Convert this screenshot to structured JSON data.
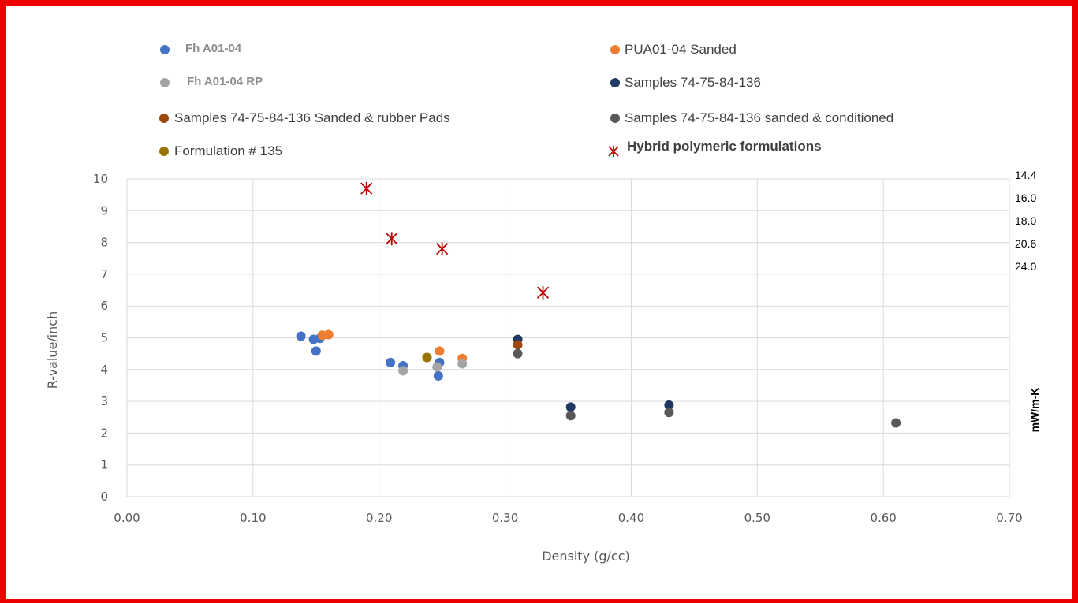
{
  "chart_data": {
    "type": "scatter",
    "title": "",
    "xlabel": "Density (g/cc)",
    "ylabel": "R-value/inch",
    "y2label": "mW/m-K",
    "xlim": [
      0,
      0.7
    ],
    "ylim": [
      0,
      10
    ],
    "x_ticks": [
      "0.00",
      "0.10",
      "0.20",
      "0.30",
      "0.40",
      "0.50",
      "0.60",
      "0.70"
    ],
    "y_ticks": [
      "0",
      "1",
      "2",
      "3",
      "4",
      "5",
      "6",
      "7",
      "8",
      "9",
      "10"
    ],
    "y2_ticks": [
      "14.4",
      "16.0",
      "18.0",
      "20.6",
      "24.0"
    ],
    "grid": true,
    "legend_position": "top",
    "series": [
      {
        "name": "Fh A01-04",
        "color": "#4472c4",
        "marker": "circle",
        "points": [
          [
            0.138,
            5.05
          ],
          [
            0.148,
            4.95
          ],
          [
            0.15,
            4.58
          ],
          [
            0.153,
            4.98
          ],
          [
            0.209,
            4.22
          ],
          [
            0.219,
            4.12
          ],
          [
            0.247,
            3.8
          ],
          [
            0.248,
            4.22
          ]
        ]
      },
      {
        "name": "PUA01-04 Sanded",
        "color": "#ed7d31",
        "marker": "circle",
        "points": [
          [
            0.155,
            5.08
          ],
          [
            0.16,
            5.1
          ],
          [
            0.248,
            4.58
          ],
          [
            0.266,
            4.35
          ]
        ]
      },
      {
        "name": "Fh A01-04 RP",
        "color": "#a5a5a5",
        "marker": "circle",
        "points": [
          [
            0.219,
            3.96
          ],
          [
            0.246,
            4.08
          ],
          [
            0.266,
            4.18
          ]
        ]
      },
      {
        "name": "Samples 74-75-84-136",
        "color": "#203864",
        "marker": "circle",
        "points": [
          [
            0.31,
            4.95
          ],
          [
            0.352,
            2.82
          ],
          [
            0.43,
            2.88
          ]
        ]
      },
      {
        "name": "Samples 74-75-84-136 Sanded & rubber Pads",
        "color": "#9e480e",
        "marker": "circle",
        "points": [
          [
            0.31,
            4.78
          ]
        ]
      },
      {
        "name": "Samples 74-75-84-136 sanded & conditioned",
        "color": "#595959",
        "marker": "circle",
        "points": [
          [
            0.31,
            4.5
          ],
          [
            0.352,
            2.55
          ],
          [
            0.43,
            2.65
          ],
          [
            0.61,
            2.32
          ]
        ]
      },
      {
        "name": "Formulation # 135",
        "color": "#997300",
        "marker": "circle",
        "points": [
          [
            0.238,
            4.38
          ]
        ]
      },
      {
        "name": "Hybrid polymeric  formulations",
        "color": "#c00000",
        "marker": "star",
        "points": [
          [
            0.19,
            9.7
          ],
          [
            0.21,
            8.12
          ],
          [
            0.25,
            7.8
          ],
          [
            0.33,
            6.42
          ]
        ]
      }
    ]
  }
}
